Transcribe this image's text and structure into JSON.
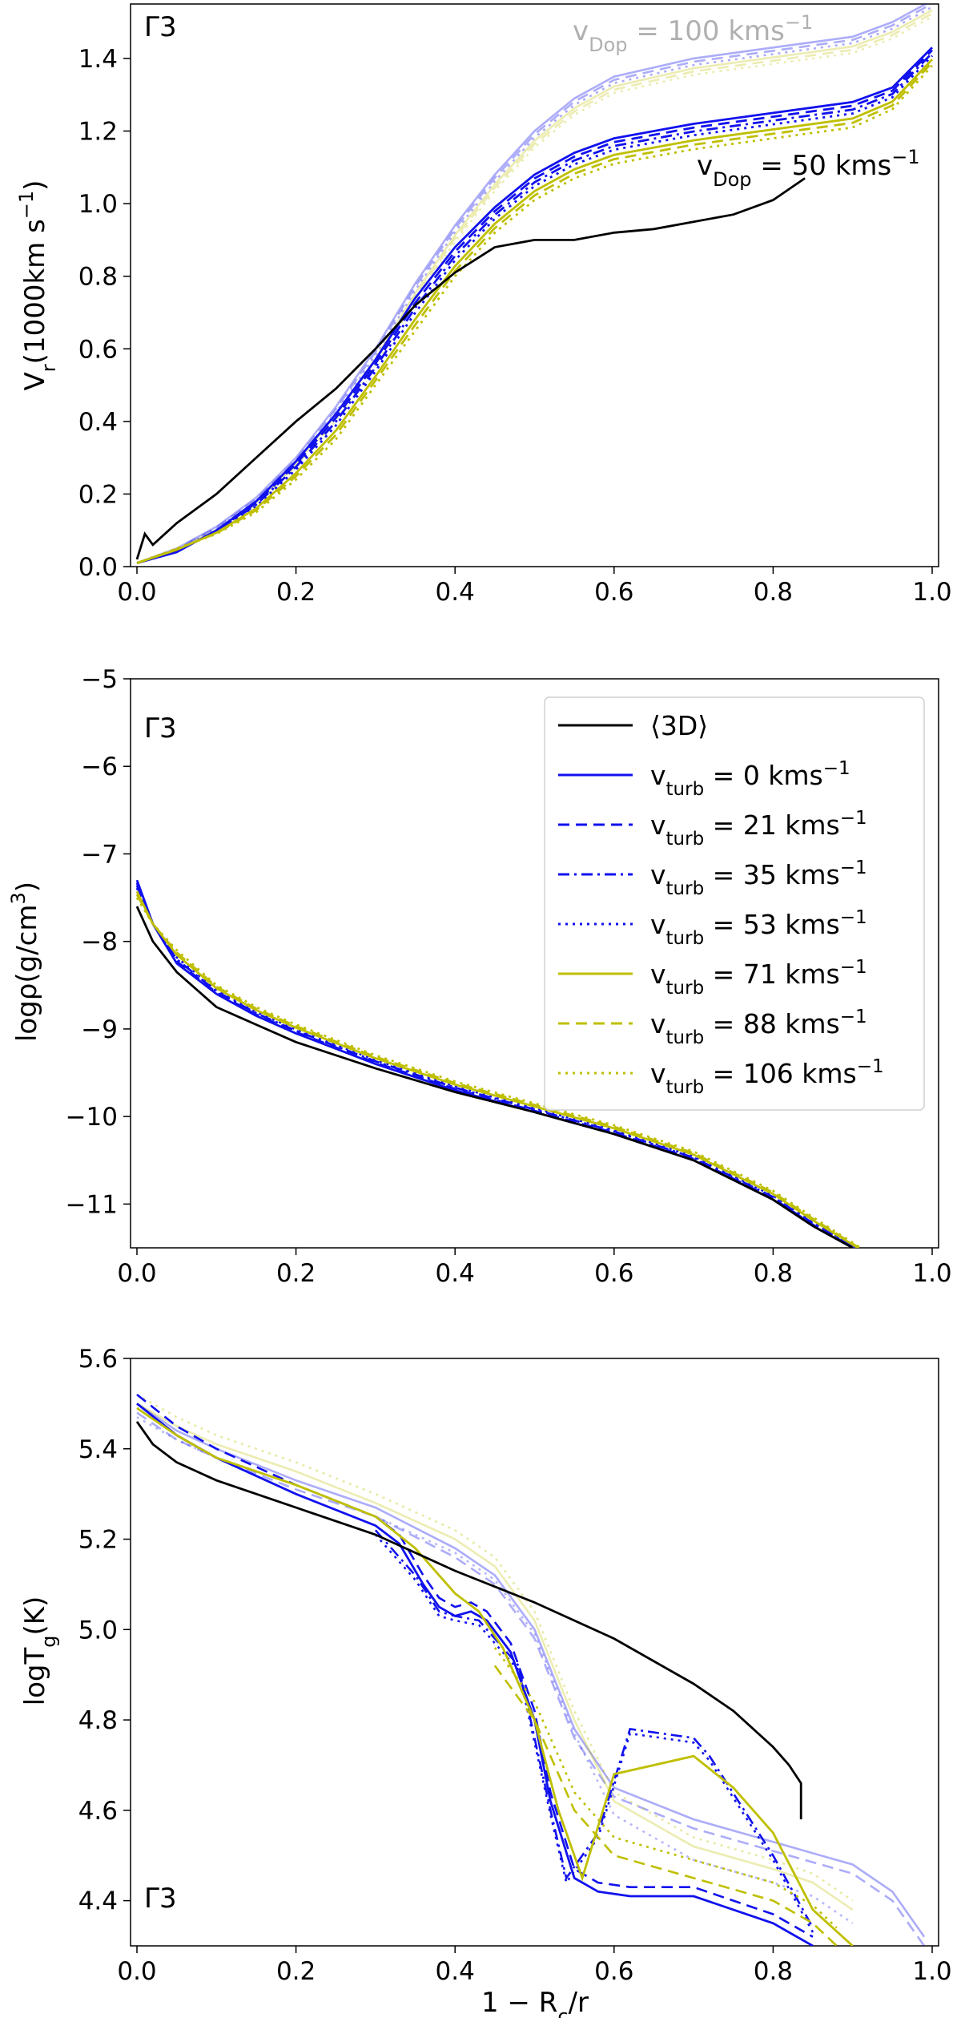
{
  "chart_data": [
    {
      "type": "line",
      "panel_label": "Γ3",
      "xlim": [
        0,
        1
      ],
      "ylim": [
        0,
        1.55
      ],
      "xticks": [
        "0.0",
        "0.2",
        "0.4",
        "0.6",
        "0.8",
        "1.0"
      ],
      "yticks": [
        "0.0",
        "0.2",
        "0.4",
        "0.6",
        "0.8",
        "1.0",
        "1.2",
        "1.4"
      ],
      "xlabel": "",
      "ylabel": "V_r(1000km s^-1)",
      "annotations": [
        {
          "text": "v_Dop = 100 kms^-1",
          "color": "#b0b0b0"
        },
        {
          "text": "v_Dop = 50 kms^-1",
          "color": "#000000"
        }
      ],
      "series": [
        {
          "name": "3D",
          "x": [
            0,
            0.01,
            0.02,
            0.05,
            0.1,
            0.15,
            0.2,
            0.25,
            0.3,
            0.35,
            0.4,
            0.45,
            0.5,
            0.55,
            0.6,
            0.65,
            0.7,
            0.75,
            0.8,
            0.84
          ],
          "y": [
            0.02,
            0.09,
            0.06,
            0.12,
            0.2,
            0.3,
            0.4,
            0.49,
            0.6,
            0.72,
            0.81,
            0.88,
            0.9,
            0.9,
            0.92,
            0.93,
            0.95,
            0.97,
            1.01,
            1.07
          ]
        },
        {
          "name": "v_turb=0 (50)",
          "x": [
            0,
            0.05,
            0.1,
            0.15,
            0.2,
            0.25,
            0.3,
            0.35,
            0.4,
            0.45,
            0.5,
            0.55,
            0.6,
            0.7,
            0.8,
            0.9,
            0.95,
            1.0
          ],
          "y": [
            0.01,
            0.04,
            0.1,
            0.18,
            0.29,
            0.42,
            0.57,
            0.74,
            0.88,
            0.99,
            1.08,
            1.14,
            1.18,
            1.22,
            1.25,
            1.28,
            1.32,
            1.43
          ]
        },
        {
          "name": "v_turb=106 (50)",
          "x": [
            0,
            0.05,
            0.1,
            0.15,
            0.2,
            0.25,
            0.3,
            0.35,
            0.4,
            0.45,
            0.5,
            0.55,
            0.6,
            0.7,
            0.8,
            0.9,
            0.95,
            1.0
          ],
          "y": [
            0.01,
            0.05,
            0.09,
            0.15,
            0.24,
            0.35,
            0.5,
            0.65,
            0.8,
            0.92,
            1.01,
            1.07,
            1.11,
            1.15,
            1.18,
            1.21,
            1.26,
            1.38
          ]
        },
        {
          "name": "v_turb=0 (100)",
          "x": [
            0,
            0.05,
            0.1,
            0.15,
            0.2,
            0.25,
            0.3,
            0.35,
            0.4,
            0.45,
            0.5,
            0.55,
            0.6,
            0.7,
            0.8,
            0.9,
            0.95,
            1.0
          ],
          "y": [
            0.01,
            0.05,
            0.11,
            0.19,
            0.3,
            0.44,
            0.6,
            0.78,
            0.94,
            1.08,
            1.2,
            1.29,
            1.35,
            1.4,
            1.43,
            1.46,
            1.5,
            1.56
          ]
        }
      ]
    },
    {
      "type": "line",
      "panel_label": "Γ3",
      "xlim": [
        0,
        1
      ],
      "ylim": [
        -11.5,
        -5
      ],
      "xticks": [
        "0.0",
        "0.2",
        "0.4",
        "0.6",
        "0.8",
        "1.0"
      ],
      "yticks": [
        "−5",
        "−6",
        "−7",
        "−8",
        "−9",
        "−10",
        "−11"
      ],
      "xlabel": "",
      "ylabel": "logρ(g/cm^3)",
      "legend": [
        {
          "label": "⟨3D⟩",
          "color": "#000000",
          "dash": "solid"
        },
        {
          "label": "v_turb = 0 kms^-1",
          "color": "#1111ee",
          "dash": "solid"
        },
        {
          "label": "v_turb = 21 kms^-1",
          "color": "#1111ee",
          "dash": "dashed"
        },
        {
          "label": "v_turb = 35 kms^-1",
          "color": "#1111ee",
          "dash": "dashdot"
        },
        {
          "label": "v_turb = 53 kms^-1",
          "color": "#1111ee",
          "dash": "dotted"
        },
        {
          "label": "v_turb = 71 kms^-1",
          "color": "#bfbf00",
          "dash": "solid"
        },
        {
          "label": "v_turb = 88 kms^-1",
          "color": "#bfbf00",
          "dash": "dashed"
        },
        {
          "label": "v_turb = 106 kms^-1",
          "color": "#bfbf00",
          "dash": "dotted"
        }
      ],
      "series": [
        {
          "name": "3D",
          "x": [
            0,
            0.02,
            0.05,
            0.1,
            0.15,
            0.2,
            0.3,
            0.4,
            0.5,
            0.6,
            0.7,
            0.8,
            0.85,
            0.9
          ],
          "y": [
            -7.6,
            -8.0,
            -8.35,
            -8.75,
            -8.95,
            -9.15,
            -9.45,
            -9.72,
            -9.95,
            -10.2,
            -10.5,
            -10.95,
            -11.25,
            -11.5
          ]
        },
        {
          "name": "v_turb=0",
          "x": [
            0,
            0.02,
            0.05,
            0.1,
            0.15,
            0.2,
            0.3,
            0.4,
            0.5,
            0.6,
            0.7,
            0.8,
            0.85,
            0.9
          ],
          "y": [
            -7.3,
            -7.8,
            -8.25,
            -8.6,
            -8.85,
            -9.05,
            -9.4,
            -9.7,
            -9.95,
            -10.2,
            -10.5,
            -10.95,
            -11.25,
            -11.5
          ]
        },
        {
          "name": "v_turb=106",
          "x": [
            0,
            0.02,
            0.05,
            0.1,
            0.15,
            0.2,
            0.3,
            0.4,
            0.5,
            0.6,
            0.7,
            0.8,
            0.85,
            0.91
          ],
          "y": [
            -7.5,
            -7.8,
            -8.1,
            -8.5,
            -8.75,
            -8.95,
            -9.3,
            -9.6,
            -9.85,
            -10.1,
            -10.4,
            -10.85,
            -11.15,
            -11.5
          ]
        }
      ]
    },
    {
      "type": "line",
      "panel_label": "Γ3",
      "xlim": [
        0,
        1
      ],
      "ylim": [
        4.3,
        5.6
      ],
      "xticks": [
        "0.0",
        "0.2",
        "0.4",
        "0.6",
        "0.8",
        "1.0"
      ],
      "yticks": [
        "5.6",
        "5.4",
        "5.2",
        "5.0",
        "4.8",
        "4.6",
        "4.4"
      ],
      "xlabel": "1 − R_c/r",
      "ylabel": "logT_g(K)",
      "series": [
        {
          "name": "3D",
          "x": [
            0,
            0.02,
            0.05,
            0.1,
            0.2,
            0.3,
            0.4,
            0.5,
            0.6,
            0.7,
            0.75,
            0.8,
            0.82,
            0.835,
            0.835
          ],
          "y": [
            5.46,
            5.41,
            5.37,
            5.33,
            5.27,
            5.21,
            5.13,
            5.06,
            4.98,
            4.88,
            4.82,
            4.74,
            4.7,
            4.66,
            4.58
          ]
        },
        {
          "name": "v_turb=0",
          "x": [
            0,
            0.05,
            0.1,
            0.2,
            0.3,
            0.33,
            0.36,
            0.38,
            0.4,
            0.42,
            0.44,
            0.47,
            0.5,
            0.52,
            0.55,
            0.58,
            0.62,
            0.7,
            0.8,
            0.85
          ],
          "y": [
            5.5,
            5.43,
            5.38,
            5.3,
            5.23,
            5.19,
            5.1,
            5.05,
            5.03,
            5.04,
            5.02,
            4.95,
            4.8,
            4.62,
            4.45,
            4.42,
            4.41,
            4.41,
            4.35,
            4.3
          ]
        },
        {
          "name": "v_turb=35",
          "x": [
            0.3,
            0.35,
            0.38,
            0.4,
            0.43,
            0.48,
            0.52,
            0.54,
            0.58,
            0.62,
            0.7,
            0.72,
            0.8,
            0.85
          ],
          "y": [
            5.22,
            5.12,
            5.04,
            5.03,
            5.02,
            4.92,
            4.6,
            4.45,
            4.55,
            4.78,
            4.76,
            4.72,
            4.5,
            4.34
          ]
        },
        {
          "name": "v_turb=71",
          "x": [
            0,
            0.05,
            0.1,
            0.2,
            0.3,
            0.35,
            0.4,
            0.43,
            0.46,
            0.5,
            0.53,
            0.56,
            0.6,
            0.7,
            0.75,
            0.8,
            0.85,
            0.9
          ],
          "y": [
            5.49,
            5.43,
            5.38,
            5.32,
            5.25,
            5.18,
            5.08,
            5.04,
            4.96,
            4.8,
            4.6,
            4.45,
            4.68,
            4.72,
            4.65,
            4.55,
            4.38,
            4.3
          ]
        },
        {
          "name": "v_turb=88",
          "x": [
            0.45,
            0.5,
            0.55,
            0.6,
            0.7,
            0.8,
            0.85,
            0.88
          ],
          "y": [
            4.92,
            4.8,
            4.6,
            4.5,
            4.45,
            4.4,
            4.35,
            4.3
          ]
        },
        {
          "name": "v_turb=0 (faint)",
          "x": [
            0,
            0.05,
            0.1,
            0.2,
            0.3,
            0.4,
            0.45,
            0.5,
            0.55,
            0.6,
            0.7,
            0.8,
            0.9,
            0.95,
            0.99
          ],
          "y": [
            5.5,
            5.44,
            5.4,
            5.33,
            5.27,
            5.18,
            5.12,
            5.0,
            4.78,
            4.65,
            4.58,
            4.53,
            4.48,
            4.42,
            4.32
          ]
        },
        {
          "name": "v_turb=106 (faint)",
          "x": [
            0,
            0.05,
            0.1,
            0.2,
            0.3,
            0.4,
            0.45,
            0.5,
            0.55,
            0.6,
            0.7,
            0.8,
            0.85,
            0.9
          ],
          "y": [
            5.5,
            5.45,
            5.41,
            5.35,
            5.28,
            5.2,
            5.14,
            5.02,
            4.8,
            4.62,
            4.52,
            4.47,
            4.44,
            4.38
          ]
        }
      ]
    }
  ]
}
